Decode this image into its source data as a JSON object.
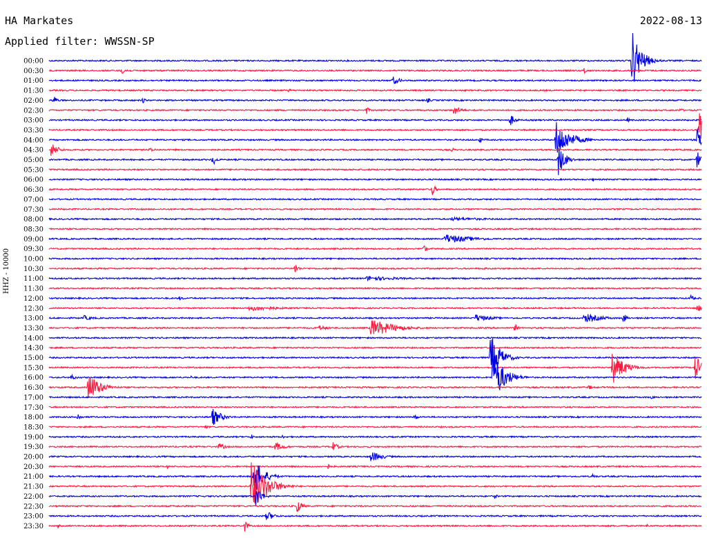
{
  "header": {
    "station": "HA Markates",
    "filter": "Applied filter: WWSSN-SP",
    "date": "2022-08-13"
  },
  "colors": {
    "odd": "#0000e6",
    "even": "#ff1a40",
    "background": "#ffffff",
    "text": "#000000"
  },
  "chart_data": {
    "type": "line",
    "ylabel": "HHZ - 10000",
    "x_unit": "minutes within 30-minute row",
    "xlim": [
      0,
      30
    ],
    "rows": [
      {
        "label": "00:00",
        "events": [
          {
            "t": 26.8,
            "a": 3.2,
            "d": 0.8
          }
        ]
      },
      {
        "label": "00:30",
        "events": [
          {
            "t": 3.3,
            "a": 0.4,
            "d": 0.6
          },
          {
            "t": 24.6,
            "a": 0.5,
            "d": 0.2
          }
        ]
      },
      {
        "label": "01:00",
        "events": [
          {
            "t": 15.8,
            "a": 0.5,
            "d": 0.6
          }
        ]
      },
      {
        "label": "01:30",
        "events": [
          {
            "t": 11.0,
            "a": 0.15,
            "d": 0.6
          }
        ]
      },
      {
        "label": "02:00",
        "events": [
          {
            "t": 0.2,
            "a": 0.6,
            "d": 0.3
          },
          {
            "t": 4.3,
            "a": 0.4,
            "d": 0.2
          },
          {
            "t": 17.4,
            "a": 0.3,
            "d": 0.3
          }
        ]
      },
      {
        "label": "02:30",
        "events": [
          {
            "t": 14.6,
            "a": 0.5,
            "d": 0.2
          },
          {
            "t": 18.6,
            "a": 0.6,
            "d": 0.6
          },
          {
            "t": 29.0,
            "a": 0.3,
            "d": 0.3
          }
        ]
      },
      {
        "label": "03:00",
        "events": [
          {
            "t": 21.2,
            "a": 0.7,
            "d": 0.4
          },
          {
            "t": 26.6,
            "a": 0.3,
            "d": 0.2
          }
        ]
      },
      {
        "label": "03:30",
        "events": [
          {
            "t": 29.9,
            "a": 1.8,
            "d": 0.5
          }
        ]
      },
      {
        "label": "04:00",
        "events": [
          {
            "t": 23.3,
            "a": 2.0,
            "d": 1.2
          },
          {
            "t": 19.8,
            "a": 0.4,
            "d": 0.2
          },
          {
            "t": 29.8,
            "a": 1.2,
            "d": 0.6
          }
        ]
      },
      {
        "label": "04:30",
        "events": [
          {
            "t": 0.1,
            "a": 0.8,
            "d": 0.6
          },
          {
            "t": 4.6,
            "a": 0.2,
            "d": 0.8
          },
          {
            "t": 18.5,
            "a": 0.25,
            "d": 0.3
          }
        ]
      },
      {
        "label": "05:00",
        "events": [
          {
            "t": 7.5,
            "a": 0.8,
            "d": 0.3
          },
          {
            "t": 23.4,
            "a": 1.8,
            "d": 0.6
          },
          {
            "t": 29.8,
            "a": 1.0,
            "d": 0.4
          }
        ]
      },
      {
        "label": "05:30",
        "events": []
      },
      {
        "label": "06:00",
        "events": [
          {
            "t": 25.0,
            "a": 0.2,
            "d": 0.2
          }
        ]
      },
      {
        "label": "06:30",
        "events": [
          {
            "t": 17.6,
            "a": 0.8,
            "d": 0.3
          }
        ]
      },
      {
        "label": "07:00",
        "events": []
      },
      {
        "label": "07:30",
        "events": [
          {
            "t": 3.8,
            "a": 0.1,
            "d": 0.4
          }
        ]
      },
      {
        "label": "08:00",
        "events": [
          {
            "t": 18.5,
            "a": 0.2,
            "d": 4.0
          }
        ]
      },
      {
        "label": "08:30",
        "events": []
      },
      {
        "label": "09:00",
        "events": [
          {
            "t": 18.2,
            "a": 0.5,
            "d": 2.5
          }
        ]
      },
      {
        "label": "09:30",
        "events": [
          {
            "t": 17.2,
            "a": 0.5,
            "d": 0.3
          }
        ]
      },
      {
        "label": "10:00",
        "events": []
      },
      {
        "label": "10:30",
        "events": [
          {
            "t": 11.3,
            "a": 0.6,
            "d": 0.3
          },
          {
            "t": 20.0,
            "a": 0.2,
            "d": 0.3
          }
        ]
      },
      {
        "label": "11:00",
        "events": [
          {
            "t": 14.6,
            "a": 0.25,
            "d": 3.5
          }
        ]
      },
      {
        "label": "11:30",
        "events": []
      },
      {
        "label": "12:00",
        "events": [
          {
            "t": 6.0,
            "a": 0.2,
            "d": 0.6
          },
          {
            "t": 29.5,
            "a": 0.4,
            "d": 0.3
          }
        ]
      },
      {
        "label": "12:30",
        "events": [
          {
            "t": 9.2,
            "a": 0.3,
            "d": 3.0
          },
          {
            "t": 29.8,
            "a": 0.5,
            "d": 0.4
          }
        ]
      },
      {
        "label": "13:00",
        "events": [
          {
            "t": 1.6,
            "a": 0.3,
            "d": 0.8
          },
          {
            "t": 19.6,
            "a": 0.4,
            "d": 1.5
          },
          {
            "t": 24.6,
            "a": 0.5,
            "d": 1.6
          },
          {
            "t": 26.4,
            "a": 0.6,
            "d": 0.3
          }
        ]
      },
      {
        "label": "13:30",
        "events": [
          {
            "t": 14.8,
            "a": 1.0,
            "d": 2.0
          },
          {
            "t": 12.4,
            "a": 0.3,
            "d": 1.0
          },
          {
            "t": 21.4,
            "a": 0.5,
            "d": 0.3
          }
        ]
      },
      {
        "label": "14:00",
        "events": []
      },
      {
        "label": "14:30",
        "events": []
      },
      {
        "label": "15:00",
        "events": [
          {
            "t": 20.3,
            "a": 2.8,
            "d": 0.8
          }
        ]
      },
      {
        "label": "15:30",
        "events": [
          {
            "t": 25.9,
            "a": 1.8,
            "d": 1.0
          },
          {
            "t": 29.7,
            "a": 1.5,
            "d": 0.6
          }
        ]
      },
      {
        "label": "16:00",
        "events": [
          {
            "t": 1.0,
            "a": 0.3,
            "d": 0.6
          },
          {
            "t": 20.4,
            "a": 2.8,
            "d": 1.0
          },
          {
            "t": 6.5,
            "a": 0.2,
            "d": 0.3
          }
        ]
      },
      {
        "label": "16:30",
        "events": [
          {
            "t": 1.8,
            "a": 1.6,
            "d": 1.0
          },
          {
            "t": 24.8,
            "a": 0.3,
            "d": 0.4
          }
        ]
      },
      {
        "label": "17:00",
        "events": [
          {
            "t": 27.7,
            "a": 0.3,
            "d": 0.2
          }
        ]
      },
      {
        "label": "17:30",
        "events": []
      },
      {
        "label": "18:00",
        "events": [
          {
            "t": 1.3,
            "a": 0.5,
            "d": 0.3
          },
          {
            "t": 7.5,
            "a": 1.0,
            "d": 0.8
          },
          {
            "t": 16.8,
            "a": 0.4,
            "d": 0.3
          }
        ]
      },
      {
        "label": "18:30",
        "events": [
          {
            "t": 7.2,
            "a": 0.3,
            "d": 0.2
          }
        ]
      },
      {
        "label": "19:00",
        "events": [
          {
            "t": 9.3,
            "a": 0.3,
            "d": 0.2
          },
          {
            "t": 10.7,
            "a": 0.3,
            "d": 0.2
          }
        ]
      },
      {
        "label": "19:30",
        "events": [
          {
            "t": 7.8,
            "a": 0.4,
            "d": 0.6
          },
          {
            "t": 10.4,
            "a": 0.5,
            "d": 0.8
          },
          {
            "t": 13.0,
            "a": 0.6,
            "d": 0.5
          }
        ]
      },
      {
        "label": "20:00",
        "events": [
          {
            "t": 14.8,
            "a": 0.6,
            "d": 1.0
          }
        ]
      },
      {
        "label": "20:30",
        "events": [
          {
            "t": 5.4,
            "a": 0.3,
            "d": 0.2
          },
          {
            "t": 12.8,
            "a": 0.4,
            "d": 0.2
          }
        ]
      },
      {
        "label": "21:00",
        "events": [
          {
            "t": 9.4,
            "a": 2.2,
            "d": 0.8
          },
          {
            "t": 25.0,
            "a": 0.3,
            "d": 0.3
          }
        ]
      },
      {
        "label": "21:30",
        "events": [
          {
            "t": 9.3,
            "a": 3.2,
            "d": 1.2
          }
        ]
      },
      {
        "label": "22:00",
        "events": [
          {
            "t": 9.5,
            "a": 1.2,
            "d": 0.5
          },
          {
            "t": 20.5,
            "a": 0.3,
            "d": 0.2
          }
        ]
      },
      {
        "label": "22:30",
        "events": [
          {
            "t": 11.4,
            "a": 0.8,
            "d": 0.4
          }
        ]
      },
      {
        "label": "23:00",
        "events": [
          {
            "t": 10.0,
            "a": 0.6,
            "d": 0.6
          }
        ]
      },
      {
        "label": "23:30",
        "events": [
          {
            "t": 0.4,
            "a": 0.3,
            "d": 0.2
          },
          {
            "t": 9.0,
            "a": 0.6,
            "d": 0.3
          },
          {
            "t": 27.5,
            "a": 0.3,
            "d": 0.2
          }
        ]
      }
    ]
  }
}
